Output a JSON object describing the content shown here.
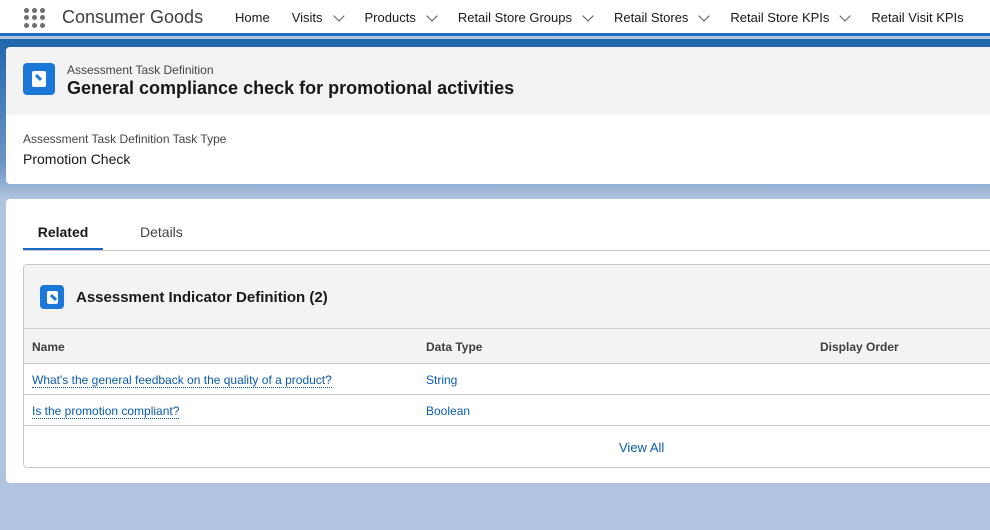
{
  "app": {
    "name": "Consumer Goods"
  },
  "nav": [
    {
      "label": "Home",
      "menu": false
    },
    {
      "label": "Visits",
      "menu": true
    },
    {
      "label": "Products",
      "menu": true
    },
    {
      "label": "Retail Store Groups",
      "menu": true
    },
    {
      "label": "Retail Stores",
      "menu": true
    },
    {
      "label": "Retail Store KPIs",
      "menu": true
    },
    {
      "label": "Retail Visit KPIs",
      "menu": false
    }
  ],
  "record": {
    "object": "Assessment Task Definition",
    "title": "General compliance check for promotional activities",
    "field_label": "Assessment Task Definition Task Type",
    "field_value": "Promotion Check"
  },
  "tabs": [
    "Related",
    "Details"
  ],
  "related": {
    "title": "Assessment Indicator Definition (2)",
    "columns": [
      "Name",
      "Data Type",
      "Display Order"
    ],
    "rows": [
      {
        "name": "What's the general feedback on the quality of a product?",
        "type": "String"
      },
      {
        "name": "Is the promotion compliant?",
        "type": "Boolean"
      }
    ],
    "view_all": "View All"
  }
}
